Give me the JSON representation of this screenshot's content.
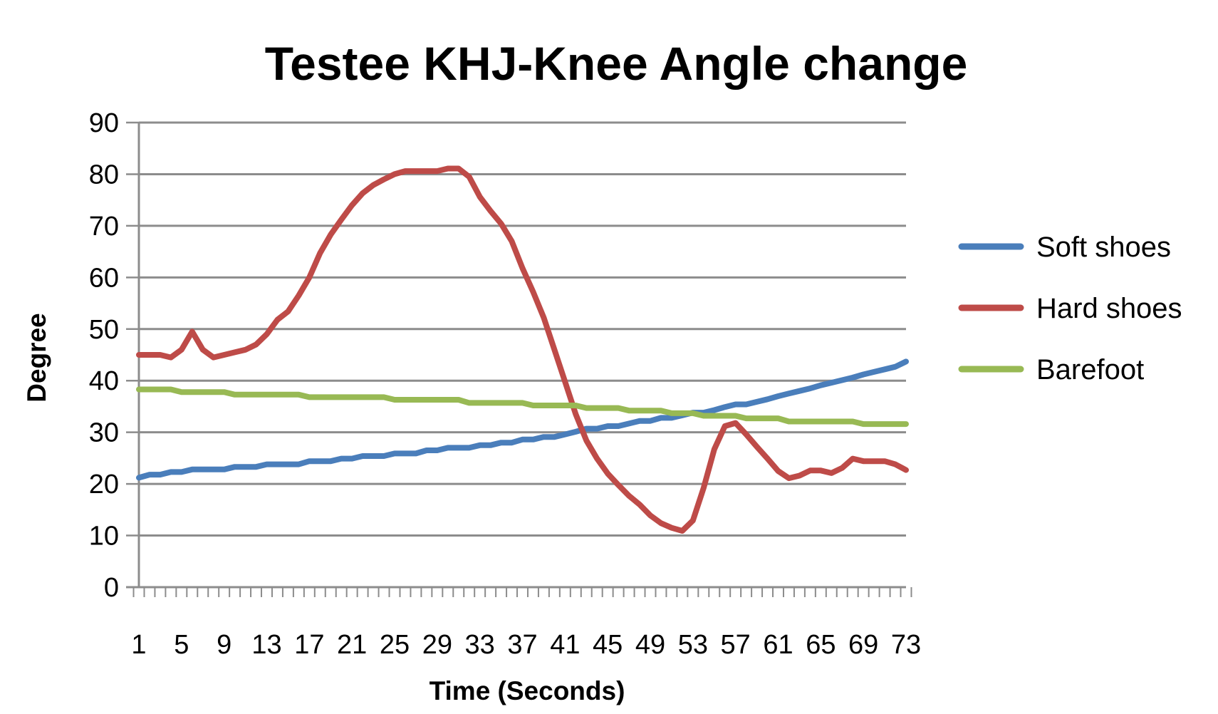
{
  "chart_data": {
    "type": "line",
    "title": "Testee KHJ-Knee Angle change",
    "xlabel": "Time (Seconds)",
    "ylabel": "Degree",
    "ylim": [
      0,
      90
    ],
    "yticks": [
      "0",
      "10",
      "20",
      "30",
      "40",
      "50",
      "60",
      "70",
      "80",
      "90"
    ],
    "xticks": [
      "1",
      "5",
      "9",
      "13",
      "17",
      "21",
      "25",
      "29",
      "33",
      "37",
      "41",
      "45",
      "49",
      "53",
      "57",
      "61",
      "65",
      "69",
      "73"
    ],
    "x": [
      1,
      2,
      3,
      4,
      5,
      6,
      7,
      8,
      9,
      10,
      11,
      12,
      13,
      14,
      15,
      16,
      17,
      18,
      19,
      20,
      21,
      22,
      23,
      24,
      25,
      26,
      27,
      28,
      29,
      30,
      31,
      32,
      33,
      34,
      35,
      36,
      37,
      38,
      39,
      40,
      41,
      42,
      43,
      44,
      45,
      46,
      47,
      48,
      49,
      50,
      51,
      52,
      53,
      54,
      55,
      56,
      57,
      58,
      59,
      60,
      61,
      62,
      63,
      64,
      65,
      66,
      67,
      68,
      69,
      70,
      71,
      72,
      73
    ],
    "grid": true,
    "legend_position": "right",
    "series": [
      {
        "name": "Soft shoes",
        "color": "#4A7EBB",
        "values": [
          21.2,
          21.8,
          21.8,
          22.3,
          22.3,
          22.8,
          22.8,
          22.8,
          22.8,
          23.3,
          23.3,
          23.3,
          23.8,
          23.8,
          23.8,
          23.8,
          24.4,
          24.4,
          24.4,
          24.9,
          24.9,
          25.4,
          25.4,
          25.4,
          25.9,
          25.9,
          25.9,
          26.5,
          26.5,
          27.0,
          27.0,
          27.0,
          27.5,
          27.5,
          28.0,
          28.0,
          28.6,
          28.6,
          29.1,
          29.1,
          29.6,
          30.1,
          30.7,
          30.7,
          31.2,
          31.2,
          31.7,
          32.2,
          32.2,
          32.8,
          32.8,
          33.3,
          33.8,
          33.8,
          34.3,
          34.9,
          35.4,
          35.4,
          35.9,
          36.4,
          37.0,
          37.5,
          38.0,
          38.5,
          39.1,
          39.6,
          40.1,
          40.6,
          41.2,
          41.7,
          42.2,
          42.7,
          43.7
        ]
      },
      {
        "name": "Hard shoes",
        "color": "#BE4B48",
        "values": [
          45.0,
          45.0,
          45.0,
          44.5,
          46.0,
          49.5,
          46.0,
          44.5,
          45.0,
          45.5,
          46.0,
          47.0,
          49.0,
          51.8,
          53.4,
          56.5,
          60.0,
          64.7,
          68.3,
          71.2,
          74.0,
          76.3,
          77.9,
          79.0,
          80.0,
          80.6,
          80.6,
          80.6,
          80.6,
          81.1,
          81.1,
          79.5,
          75.6,
          72.9,
          70.4,
          67.0,
          61.8,
          57.2,
          52.2,
          46.0,
          39.8,
          33.5,
          28.4,
          24.9,
          22.0,
          19.8,
          17.7,
          16.0,
          13.9,
          12.4,
          11.5,
          10.9,
          12.9,
          19.2,
          26.7,
          31.2,
          31.8,
          29.6,
          27.2,
          24.9,
          22.5,
          21.1,
          21.6,
          22.6,
          22.6,
          22.1,
          23.1,
          24.9,
          24.4,
          24.4,
          24.4,
          23.8,
          22.7
        ]
      },
      {
        "name": "Barefoot",
        "color": "#98B954",
        "values": [
          38.3,
          38.3,
          38.3,
          38.3,
          37.8,
          37.8,
          37.8,
          37.8,
          37.8,
          37.3,
          37.3,
          37.3,
          37.3,
          37.3,
          37.3,
          37.3,
          36.8,
          36.8,
          36.8,
          36.8,
          36.8,
          36.8,
          36.8,
          36.8,
          36.3,
          36.3,
          36.3,
          36.3,
          36.3,
          36.3,
          36.3,
          35.7,
          35.7,
          35.7,
          35.7,
          35.7,
          35.7,
          35.2,
          35.2,
          35.2,
          35.2,
          35.2,
          34.7,
          34.7,
          34.7,
          34.7,
          34.2,
          34.2,
          34.2,
          34.2,
          33.7,
          33.7,
          33.7,
          33.2,
          33.2,
          33.2,
          33.2,
          32.7,
          32.7,
          32.7,
          32.7,
          32.1,
          32.1,
          32.1,
          32.1,
          32.1,
          32.1,
          32.1,
          31.6,
          31.6,
          31.6,
          31.6,
          31.6
        ]
      }
    ]
  }
}
